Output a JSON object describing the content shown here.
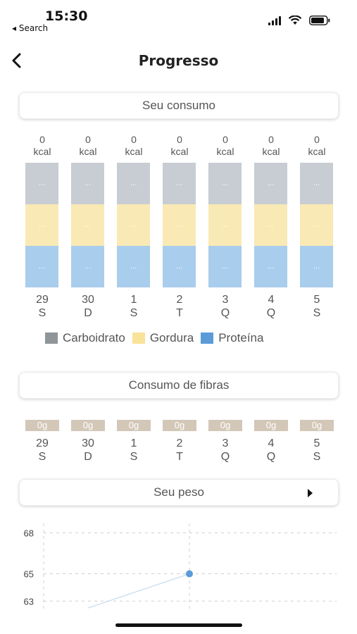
{
  "status_bar": {
    "time": "15:30",
    "back_label": "◂ Search"
  },
  "nav": {
    "title": "Progresso"
  },
  "consumo": {
    "header": "Seu consumo",
    "days": [
      {
        "kcal_value": "0",
        "kcal_unit": "kcal",
        "carb": "...",
        "fat": "...",
        "prot": "...",
        "date": "29",
        "weekday": "S"
      },
      {
        "kcal_value": "0",
        "kcal_unit": "kcal",
        "carb": "...",
        "fat": "...",
        "prot": "...",
        "date": "30",
        "weekday": "D"
      },
      {
        "kcal_value": "0",
        "kcal_unit": "kcal",
        "carb": "...",
        "fat": "...",
        "prot": "...",
        "date": "1",
        "weekday": "S"
      },
      {
        "kcal_value": "0",
        "kcal_unit": "kcal",
        "carb": "...",
        "fat": "...",
        "prot": "...",
        "date": "2",
        "weekday": "T"
      },
      {
        "kcal_value": "0",
        "kcal_unit": "kcal",
        "carb": "...",
        "fat": "...",
        "prot": "...",
        "date": "3",
        "weekday": "Q"
      },
      {
        "kcal_value": "0",
        "kcal_unit": "kcal",
        "carb": "...",
        "fat": "...",
        "prot": "...",
        "date": "4",
        "weekday": "Q"
      },
      {
        "kcal_value": "0",
        "kcal_unit": "kcal",
        "carb": "...",
        "fat": "...",
        "prot": "...",
        "date": "5",
        "weekday": "S"
      }
    ],
    "legend": [
      {
        "label": "Carboidrato",
        "color": "#8f9599"
      },
      {
        "label": "Gordura",
        "color": "#f9e29a"
      },
      {
        "label": "Proteína",
        "color": "#5b9bd8"
      }
    ]
  },
  "fibras": {
    "header": "Consumo de fibras",
    "days": [
      {
        "value": "0g",
        "date": "29",
        "weekday": "S"
      },
      {
        "value": "0g",
        "date": "30",
        "weekday": "D"
      },
      {
        "value": "0g",
        "date": "1",
        "weekday": "S"
      },
      {
        "value": "0g",
        "date": "2",
        "weekday": "T"
      },
      {
        "value": "0g",
        "date": "3",
        "weekday": "Q"
      },
      {
        "value": "0g",
        "date": "4",
        "weekday": "Q"
      },
      {
        "value": "0g",
        "date": "5",
        "weekday": "S"
      }
    ]
  },
  "peso": {
    "header": "Seu peso",
    "chart_data": {
      "type": "line",
      "ylim": [
        62.5,
        69
      ],
      "yticks": [
        "68",
        "65",
        "63"
      ],
      "ytick_values": [
        68,
        65,
        63
      ],
      "grid": true,
      "points": [
        {
          "y": 65
        }
      ],
      "point_color": "#5b9bd8"
    }
  }
}
